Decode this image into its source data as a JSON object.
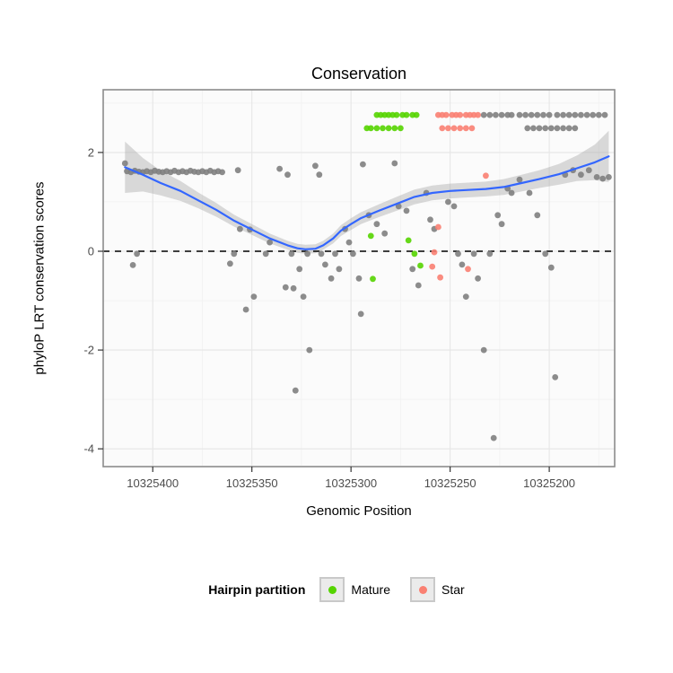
{
  "chart": {
    "title": "Conservation",
    "xlabel": "Genomic Position",
    "ylabel": "phyloP LRT conservation scores",
    "legend_title": "Hairpin partition",
    "legend_items": [
      {
        "label": "Mature",
        "color": "#55D400"
      },
      {
        "label": "Star",
        "color": "#FA8072"
      }
    ]
  },
  "chart_data": {
    "type": "scatter",
    "title": "Conservation",
    "xlabel": "Genomic Position",
    "ylabel": "phyloP LRT conservation scores",
    "x_axis_reversed": true,
    "x_range": [
      10325425,
      10325167
    ],
    "y_range": [
      -4.36,
      3.27
    ],
    "x_ticks": [
      10325400,
      10325350,
      10325300,
      10325250,
      10325200
    ],
    "y_ticks": [
      -4,
      -2,
      0,
      2
    ],
    "x_minor_ticks": [
      10325375,
      10325325,
      10325275,
      10325225,
      10325175
    ],
    "y_minor_ticks": [
      -3,
      -1,
      1,
      3
    ],
    "grid": true,
    "legend_position": "bottom",
    "colors": {
      "panel_bg": "#FBFBFB",
      "grid_major": "#E6E6E6",
      "grid_minor": "#F2F2F2",
      "border": "#8C8C8C",
      "tick_mark": "#333333",
      "tick_text": "#4D4D4D",
      "band": "#A6A6A6"
    },
    "hline": {
      "y": 0,
      "style": "dashed",
      "color": "#000000"
    },
    "smooth": {
      "color": "#3366FF",
      "points": [
        [
          10325414,
          1.7
        ],
        [
          10325405,
          1.55
        ],
        [
          10325396,
          1.38
        ],
        [
          10325386,
          1.22
        ],
        [
          10325377,
          1.03
        ],
        [
          10325368,
          0.84
        ],
        [
          10325359,
          0.62
        ],
        [
          10325350,
          0.44
        ],
        [
          10325341,
          0.26
        ],
        [
          10325332,
          0.12
        ],
        [
          10325327,
          0.06
        ],
        [
          10325323,
          0.04
        ],
        [
          10325318,
          0.05
        ],
        [
          10325314,
          0.12
        ],
        [
          10325309,
          0.26
        ],
        [
          10325305,
          0.42
        ],
        [
          10325300,
          0.55
        ],
        [
          10325295,
          0.67
        ],
        [
          10325286,
          0.82
        ],
        [
          10325277,
          0.96
        ],
        [
          10325268,
          1.1
        ],
        [
          10325259,
          1.18
        ],
        [
          10325250,
          1.22
        ],
        [
          10325241,
          1.24
        ],
        [
          10325232,
          1.26
        ],
        [
          10325223,
          1.3
        ],
        [
          10325214,
          1.38
        ],
        [
          10325205,
          1.46
        ],
        [
          10325195,
          1.56
        ],
        [
          10325186,
          1.68
        ],
        [
          10325177,
          1.8
        ],
        [
          10325170,
          1.92
        ]
      ],
      "band": [
        [
          10325414,
          1.18,
          2.22
        ],
        [
          10325405,
          1.21,
          1.89
        ],
        [
          10325396,
          1.13,
          1.63
        ],
        [
          10325386,
          1.02,
          1.42
        ],
        [
          10325377,
          0.87,
          1.19
        ],
        [
          10325368,
          0.7,
          0.98
        ],
        [
          10325359,
          0.5,
          0.74
        ],
        [
          10325350,
          0.33,
          0.55
        ],
        [
          10325341,
          0.16,
          0.36
        ],
        [
          10325332,
          0.03,
          0.21
        ],
        [
          10325327,
          -0.03,
          0.15
        ],
        [
          10325323,
          -0.05,
          0.13
        ],
        [
          10325318,
          -0.04,
          0.14
        ],
        [
          10325314,
          0.03,
          0.21
        ],
        [
          10325309,
          0.16,
          0.36
        ],
        [
          10325305,
          0.31,
          0.53
        ],
        [
          10325300,
          0.43,
          0.67
        ],
        [
          10325295,
          0.55,
          0.79
        ],
        [
          10325286,
          0.69,
          0.95
        ],
        [
          10325277,
          0.82,
          1.1
        ],
        [
          10325268,
          0.95,
          1.25
        ],
        [
          10325259,
          1.03,
          1.33
        ],
        [
          10325250,
          1.07,
          1.37
        ],
        [
          10325241,
          1.09,
          1.39
        ],
        [
          10325232,
          1.11,
          1.41
        ],
        [
          10325223,
          1.14,
          1.46
        ],
        [
          10325214,
          1.21,
          1.55
        ],
        [
          10325205,
          1.28,
          1.64
        ],
        [
          10325195,
          1.35,
          1.77
        ],
        [
          10325186,
          1.42,
          1.94
        ],
        [
          10325177,
          1.44,
          2.16
        ],
        [
          10325170,
          1.4,
          2.44
        ]
      ]
    },
    "series": [
      {
        "name": "Other",
        "color": "#7F7F7F",
        "in_legend": false,
        "points": [
          [
            10325414,
            1.78
          ],
          [
            10325413,
            1.62
          ],
          [
            10325411,
            1.6
          ],
          [
            10325409,
            1.63
          ],
          [
            10325407,
            1.61
          ],
          [
            10325405,
            1.6
          ],
          [
            10325403,
            1.62
          ],
          [
            10325401,
            1.6
          ],
          [
            10325399,
            1.63
          ],
          [
            10325397,
            1.61
          ],
          [
            10325395,
            1.6
          ],
          [
            10325393,
            1.62
          ],
          [
            10325391,
            1.6
          ],
          [
            10325389,
            1.63
          ],
          [
            10325387,
            1.6
          ],
          [
            10325385,
            1.62
          ],
          [
            10325383,
            1.6
          ],
          [
            10325381,
            1.63
          ],
          [
            10325379,
            1.61
          ],
          [
            10325377,
            1.6
          ],
          [
            10325375,
            1.62
          ],
          [
            10325373,
            1.6
          ],
          [
            10325371,
            1.63
          ],
          [
            10325369,
            1.6
          ],
          [
            10325367,
            1.62
          ],
          [
            10325365,
            1.6
          ],
          [
            10325410,
            -0.28
          ],
          [
            10325408,
            -0.05
          ],
          [
            10325357,
            1.64
          ],
          [
            10325356,
            0.45
          ],
          [
            10325351,
            0.44
          ],
          [
            10325359,
            -0.05
          ],
          [
            10325361,
            -0.25
          ],
          [
            10325349,
            -0.92
          ],
          [
            10325353,
            -1.18
          ],
          [
            10325343,
            -0.05
          ],
          [
            10325341,
            0.18
          ],
          [
            10325336,
            1.67
          ],
          [
            10325332,
            1.55
          ],
          [
            10325330,
            -0.05
          ],
          [
            10325326,
            -0.36
          ],
          [
            10325333,
            -0.73
          ],
          [
            10325329,
            -0.75
          ],
          [
            10325324,
            -0.92
          ],
          [
            10325322,
            -0.05
          ],
          [
            10325321,
            -2.0
          ],
          [
            10325328,
            -2.82
          ],
          [
            10325318,
            1.73
          ],
          [
            10325316,
            1.55
          ],
          [
            10325315,
            -0.05
          ],
          [
            10325313,
            -0.27
          ],
          [
            10325310,
            -0.55
          ],
          [
            10325308,
            -0.05
          ],
          [
            10325306,
            -0.36
          ],
          [
            10325303,
            0.45
          ],
          [
            10325301,
            0.18
          ],
          [
            10325299,
            -0.05
          ],
          [
            10325296,
            -0.55
          ],
          [
            10325295,
            -1.27
          ],
          [
            10325294,
            1.76
          ],
          [
            10325291,
            0.73
          ],
          [
            10325287,
            0.55
          ],
          [
            10325283,
            0.36
          ],
          [
            10325278,
            1.78
          ],
          [
            10325276,
            0.91
          ],
          [
            10325272,
            0.82
          ],
          [
            10325269,
            -0.36
          ],
          [
            10325266,
            -0.69
          ],
          [
            10325262,
            1.18
          ],
          [
            10325260,
            0.64
          ],
          [
            10325258,
            0.45
          ],
          [
            10325251,
            1.0
          ],
          [
            10325248,
            0.91
          ],
          [
            10325246,
            -0.05
          ],
          [
            10325244,
            -0.27
          ],
          [
            10325242,
            -0.92
          ],
          [
            10325238,
            -0.05
          ],
          [
            10325236,
            -0.55
          ],
          [
            10325233,
            -2.0
          ],
          [
            10325230,
            -0.05
          ],
          [
            10325228,
            -3.78
          ],
          [
            10325226,
            0.73
          ],
          [
            10325224,
            0.55
          ],
          [
            10325221,
            1.27
          ],
          [
            10325219,
            1.18
          ],
          [
            10325215,
            1.45
          ],
          [
            10325210,
            1.18
          ],
          [
            10325206,
            0.73
          ],
          [
            10325202,
            -0.05
          ],
          [
            10325199,
            -0.33
          ],
          [
            10325197,
            -2.55
          ],
          [
            10325192,
            1.55
          ],
          [
            10325188,
            1.64
          ],
          [
            10325184,
            1.55
          ],
          [
            10325180,
            1.64
          ],
          [
            10325176,
            1.5
          ],
          [
            10325173,
            1.47
          ],
          [
            10325170,
            1.5
          ],
          [
            10325233,
            2.76
          ],
          [
            10325230,
            2.76
          ],
          [
            10325227,
            2.76
          ],
          [
            10325224,
            2.76
          ],
          [
            10325221,
            2.76
          ],
          [
            10325219,
            2.76
          ],
          [
            10325215,
            2.76
          ],
          [
            10325212,
            2.76
          ],
          [
            10325209,
            2.76
          ],
          [
            10325206,
            2.76
          ],
          [
            10325203,
            2.76
          ],
          [
            10325200,
            2.76
          ],
          [
            10325196,
            2.76
          ],
          [
            10325193,
            2.76
          ],
          [
            10325190,
            2.76
          ],
          [
            10325187,
            2.76
          ],
          [
            10325184,
            2.76
          ],
          [
            10325181,
            2.76
          ],
          [
            10325178,
            2.76
          ],
          [
            10325175,
            2.76
          ],
          [
            10325172,
            2.76
          ],
          [
            10325211,
            2.49
          ],
          [
            10325208,
            2.49
          ],
          [
            10325205,
            2.49
          ],
          [
            10325202,
            2.49
          ],
          [
            10325199,
            2.49
          ],
          [
            10325196,
            2.49
          ],
          [
            10325193,
            2.49
          ],
          [
            10325190,
            2.49
          ],
          [
            10325187,
            2.49
          ]
        ]
      },
      {
        "name": "Mature",
        "color": "#55D400",
        "in_legend": true,
        "points": [
          [
            10325287,
            2.76
          ],
          [
            10325285,
            2.76
          ],
          [
            10325283,
            2.76
          ],
          [
            10325281,
            2.76
          ],
          [
            10325279,
            2.76
          ],
          [
            10325277,
            2.76
          ],
          [
            10325274,
            2.76
          ],
          [
            10325272,
            2.76
          ],
          [
            10325269,
            2.76
          ],
          [
            10325267,
            2.76
          ],
          [
            10325292,
            2.49
          ],
          [
            10325290,
            2.49
          ],
          [
            10325287,
            2.49
          ],
          [
            10325284,
            2.49
          ],
          [
            10325281,
            2.49
          ],
          [
            10325278,
            2.49
          ],
          [
            10325275,
            2.49
          ],
          [
            10325290,
            0.31
          ],
          [
            10325271,
            0.22
          ],
          [
            10325289,
            -0.56
          ],
          [
            10325265,
            -0.29
          ],
          [
            10325268,
            -0.05
          ]
        ]
      },
      {
        "name": "Star",
        "color": "#FA8072",
        "in_legend": true,
        "points": [
          [
            10325256,
            2.76
          ],
          [
            10325254,
            2.76
          ],
          [
            10325252,
            2.76
          ],
          [
            10325249,
            2.76
          ],
          [
            10325247,
            2.76
          ],
          [
            10325245,
            2.76
          ],
          [
            10325242,
            2.76
          ],
          [
            10325240,
            2.76
          ],
          [
            10325238,
            2.76
          ],
          [
            10325236,
            2.76
          ],
          [
            10325254,
            2.49
          ],
          [
            10325251,
            2.49
          ],
          [
            10325248,
            2.49
          ],
          [
            10325245,
            2.49
          ],
          [
            10325242,
            2.49
          ],
          [
            10325239,
            2.49
          ],
          [
            10325256,
            0.49
          ],
          [
            10325258,
            -0.02
          ],
          [
            10325259,
            -0.31
          ],
          [
            10325255,
            -0.53
          ],
          [
            10325241,
            -0.36
          ],
          [
            10325232,
            1.53
          ]
        ]
      }
    ],
    "legend": {
      "title": "Hairpin partition",
      "labels": [
        "Mature",
        "Star"
      ]
    }
  }
}
